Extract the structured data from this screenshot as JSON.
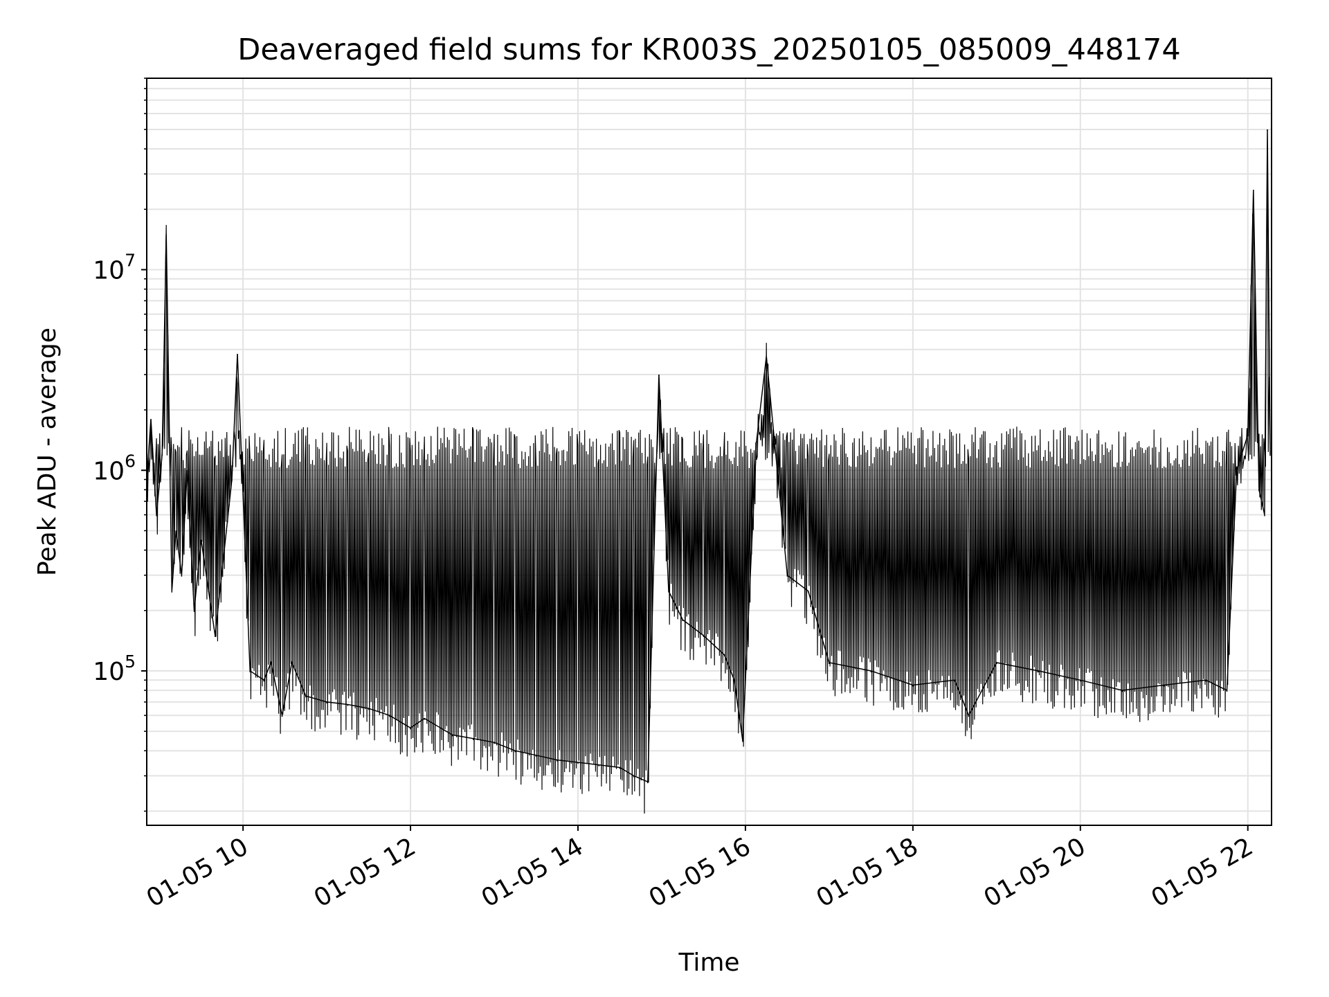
{
  "chart_data": {
    "type": "line",
    "title": "Deaveraged field sums for KR003S_20250105_085009_448174",
    "xlabel": "Time",
    "ylabel": "Peak ADU - average",
    "yscale": "log",
    "xlim": [
      "2025-01-05 08:51",
      "2025-01-05 22:17"
    ],
    "ylim": [
      17000,
      90000000
    ],
    "grid": true,
    "line_color": "#000000",
    "x_ticks": [
      {
        "value": "2025-01-05 10:00",
        "label": "01-05 10"
      },
      {
        "value": "2025-01-05 12:00",
        "label": "01-05 12"
      },
      {
        "value": "2025-01-05 14:00",
        "label": "01-05 14"
      },
      {
        "value": "2025-01-05 16:00",
        "label": "01-05 16"
      },
      {
        "value": "2025-01-05 18:00",
        "label": "01-05 18"
      },
      {
        "value": "2025-01-05 20:00",
        "label": "01-05 20"
      },
      {
        "value": "2025-01-05 22:00",
        "label": "01-05 22"
      }
    ],
    "y_ticks": [
      {
        "value": 100000,
        "base": "10",
        "exp": "5"
      },
      {
        "value": 1000000,
        "base": "10",
        "exp": "6"
      },
      {
        "value": 10000000,
        "base": "10",
        "exp": "7"
      }
    ],
    "series": [
      {
        "x": [
          "2025-01-05 08:51",
          "2025-01-05 08:54",
          "2025-01-05 08:58",
          "2025-01-05 09:02",
          "2025-01-05 09:05",
          "2025-01-05 09:09",
          "2025-01-05 09:12",
          "2025-01-05 09:16",
          "2025-01-05 09:20",
          "2025-01-05 09:25",
          "2025-01-05 09:30",
          "2025-01-05 09:40",
          "2025-01-05 09:52",
          "2025-01-05 09:56",
          "2025-01-05 10:05",
          "2025-01-05 10:15",
          "2025-01-05 10:20",
          "2025-01-05 10:28",
          "2025-01-05 10:35",
          "2025-01-05 10:45",
          "2025-01-05 11:00",
          "2025-01-05 11:15",
          "2025-01-05 11:30",
          "2025-01-05 11:45",
          "2025-01-05 12:00",
          "2025-01-05 12:10",
          "2025-01-05 12:30",
          "2025-01-05 12:45",
          "2025-01-05 13:00",
          "2025-01-05 13:15",
          "2025-01-05 13:30",
          "2025-01-05 13:45",
          "2025-01-05 14:00",
          "2025-01-05 14:15",
          "2025-01-05 14:30",
          "2025-01-05 14:40",
          "2025-01-05 14:50",
          "2025-01-05 14:58",
          "2025-01-05 15:05",
          "2025-01-05 15:15",
          "2025-01-05 15:30",
          "2025-01-05 15:45",
          "2025-01-05 15:52",
          "2025-01-05 15:58",
          "2025-01-05 16:08",
          "2025-01-05 16:15",
          "2025-01-05 16:30",
          "2025-01-05 16:45",
          "2025-01-05 17:00",
          "2025-01-05 17:30",
          "2025-01-05 18:00",
          "2025-01-05 18:30",
          "2025-01-05 18:40",
          "2025-01-05 19:00",
          "2025-01-05 19:30",
          "2025-01-05 20:00",
          "2025-01-05 20:30",
          "2025-01-05 21:00",
          "2025-01-05 21:30",
          "2025-01-05 21:45",
          "2025-01-05 21:52",
          "2025-01-05 22:00",
          "2025-01-05 22:04",
          "2025-01-05 22:08",
          "2025-01-05 22:12",
          "2025-01-05 22:14",
          "2025-01-05 22:16"
        ],
        "y": [
          900000,
          1800000,
          600000,
          1200000,
          15000000,
          250000,
          500000,
          300000,
          1000000,
          200000,
          450000,
          150000,
          900000,
          3800000,
          100000,
          90000,
          110000,
          60000,
          110000,
          75000,
          70000,
          68000,
          65000,
          60000,
          52000,
          58000,
          48000,
          46000,
          44000,
          40000,
          38000,
          36000,
          35000,
          34000,
          33000,
          30000,
          28000,
          3000000,
          250000,
          180000,
          150000,
          120000,
          90000,
          45000,
          1400000,
          3700000,
          300000,
          250000,
          110000,
          100000,
          85000,
          90000,
          60000,
          110000,
          100000,
          90000,
          80000,
          85000,
          90000,
          80000,
          1000000,
          1500000,
          25000000,
          800000,
          600000,
          50000000,
          1200000
        ]
      }
    ]
  }
}
